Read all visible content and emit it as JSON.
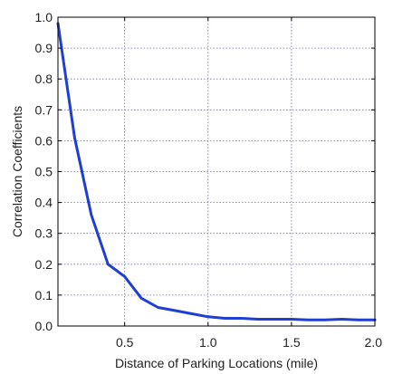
{
  "chart_data": {
    "type": "line",
    "title": "",
    "xlabel": "Distance of Parking Locations (mile)",
    "ylabel": "Correlation Coefficients",
    "xlim": [
      0.1,
      2.0
    ],
    "ylim": [
      0.0,
      1.0
    ],
    "x_ticks": [
      0.5,
      1.0,
      1.5,
      2.0
    ],
    "x_tick_labels": [
      "0.5",
      "1.0",
      "1.5",
      "2.0"
    ],
    "y_ticks": [
      0.0,
      0.1,
      0.2,
      0.3,
      0.4,
      0.5,
      0.6,
      0.7,
      0.8,
      0.9,
      1.0
    ],
    "y_tick_labels": [
      "0.0",
      "0.1",
      "0.2",
      "0.3",
      "0.4",
      "0.5",
      "0.6",
      "0.7",
      "0.8",
      "0.9",
      "1.0"
    ],
    "grid": true,
    "grid_color": "#6b6bd6",
    "series": [
      {
        "color": "#1f3fd0",
        "x": [
          0.1,
          0.2,
          0.3,
          0.4,
          0.5,
          0.6,
          0.7,
          0.8,
          0.9,
          1.0,
          1.1,
          1.2,
          1.3,
          1.4,
          1.5,
          1.6,
          1.7,
          1.8,
          1.9,
          2.0
        ],
        "y": [
          0.98,
          0.61,
          0.36,
          0.2,
          0.16,
          0.09,
          0.06,
          0.05,
          0.04,
          0.03,
          0.025,
          0.025,
          0.022,
          0.022,
          0.022,
          0.02,
          0.02,
          0.022,
          0.02,
          0.02
        ]
      }
    ]
  }
}
